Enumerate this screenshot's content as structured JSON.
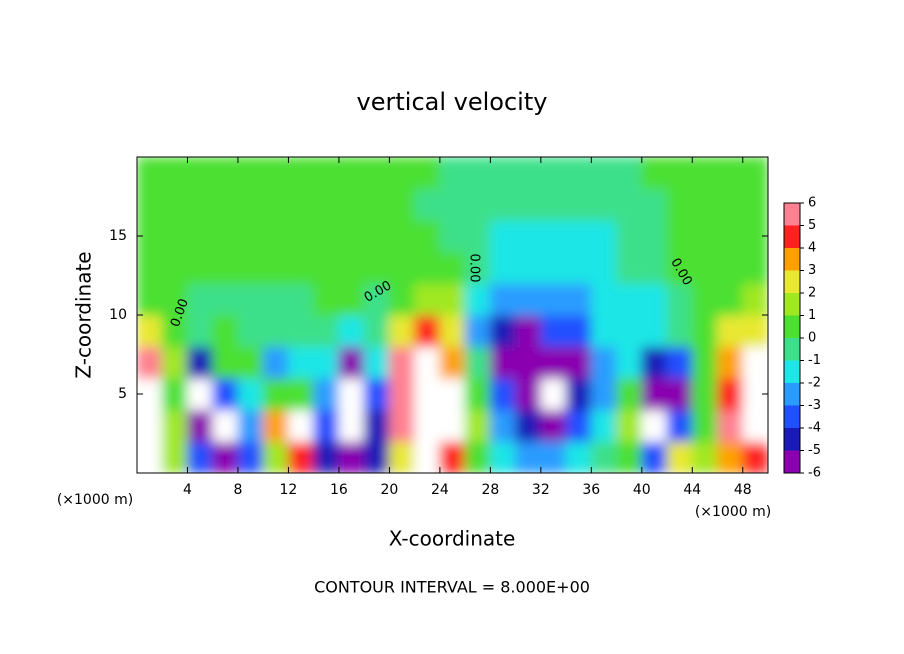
{
  "chart_data": {
    "type": "heatmap",
    "title": "vertical velocity",
    "x_label": "X-coordinate",
    "y_label": "Z-coordinate",
    "x_unit_label": "(×1000 m)",
    "y_unit_label": "(×1000 m)",
    "footer": "CONTOUR INTERVAL = 8.000E+00",
    "contour_labels": [
      "0.00",
      "0.00",
      "0.00",
      "0.00"
    ],
    "x": [
      1,
      3,
      5,
      7,
      9,
      11,
      13,
      15,
      17,
      19,
      21,
      23,
      25,
      27,
      29,
      31,
      33,
      35,
      37,
      39,
      41,
      43,
      45,
      47,
      49
    ],
    "y": [
      1,
      3,
      5,
      7,
      9,
      11,
      13,
      15,
      17,
      19
    ],
    "z": [
      [
        7,
        2,
        -3,
        -5,
        -3,
        2,
        5,
        -4,
        -6,
        -4,
        3,
        7,
        5,
        1,
        -1,
        -2,
        -2,
        -1,
        0,
        1,
        -3,
        3,
        2,
        4,
        5
      ],
      [
        8,
        2,
        -5,
        -8,
        -2,
        4,
        7,
        -3,
        -8,
        -4,
        6,
        8,
        7,
        2,
        -2,
        -4,
        -5,
        -3,
        -1,
        2,
        -7,
        -3,
        1,
        6,
        8
      ],
      [
        8,
        1,
        -7,
        -3,
        -1,
        1,
        1,
        -2,
        -8,
        -3,
        6,
        8,
        7,
        1,
        -3,
        -6,
        -8,
        -4,
        -2,
        1,
        -6,
        -5,
        0.5,
        5,
        8
      ],
      [
        6,
        2,
        -4,
        1,
        0.5,
        -2,
        -1,
        -1,
        -5,
        -1,
        6,
        8,
        4,
        0,
        -5,
        -6,
        -5,
        -6,
        -2,
        -1,
        -4,
        -3,
        0.5,
        4,
        7
      ],
      [
        3,
        1,
        0,
        0.5,
        0,
        0,
        0,
        0,
        -1,
        0,
        3,
        5,
        3,
        -2,
        -4,
        -5,
        -3,
        -3,
        -1.5,
        -1,
        -1,
        0,
        1,
        3,
        3
      ],
      [
        1,
        0.5,
        0,
        0,
        0,
        0,
        0,
        0.5,
        0.5,
        0,
        1,
        2,
        2,
        -1,
        -2,
        -2,
        -2,
        -2,
        -1,
        -1,
        -1,
        0,
        0.5,
        1,
        1.5
      ],
      [
        0.5,
        0.5,
        0.5,
        0.5,
        0.5,
        0.5,
        0.5,
        0.5,
        0.5,
        0.5,
        0.5,
        0.5,
        0.5,
        -0.5,
        -1,
        -1,
        -1.5,
        -1.5,
        -1,
        -0.5,
        0,
        0.5,
        0.5,
        0.5,
        0.5
      ],
      [
        0.5,
        0.5,
        0.5,
        0.5,
        0.5,
        0.5,
        0.5,
        0.5,
        0.5,
        0.5,
        0.5,
        0.5,
        0,
        -0.5,
        -1,
        -1,
        -1,
        -1,
        -1,
        -0.5,
        0,
        0.5,
        0.5,
        0.5,
        0.5
      ],
      [
        0.5,
        0.5,
        0.5,
        0.5,
        0.5,
        0.5,
        0.5,
        0.5,
        0.5,
        0.5,
        0.5,
        0,
        0,
        -0.5,
        -0.5,
        -0.5,
        -0.5,
        -0.5,
        -0.5,
        0,
        0,
        0.5,
        0.5,
        0.5,
        0.5
      ],
      [
        0.5,
        0.5,
        0.5,
        0.5,
        0.5,
        0.5,
        0.5,
        0.5,
        0.5,
        0.5,
        0.5,
        0.5,
        0,
        0,
        0,
        -0.5,
        -0.5,
        -0.5,
        0,
        0,
        0.5,
        0.5,
        0.5,
        0.5,
        0.5
      ]
    ],
    "xlim": [
      0,
      50
    ],
    "ylim": [
      0,
      20
    ],
    "xticks": [
      4,
      8,
      12,
      16,
      20,
      24,
      28,
      32,
      36,
      40,
      44,
      48
    ],
    "yticks": [
      5,
      10,
      15
    ],
    "color_levels": [
      -6,
      -5,
      -4,
      -3,
      -2,
      -1,
      0,
      1,
      2,
      3,
      4,
      5,
      6
    ],
    "colors": [
      "#8a00b0",
      "#1a1ab8",
      "#2050ff",
      "#2a9cff",
      "#1ee6e6",
      "#3ce08a",
      "#4ce030",
      "#a0e820",
      "#e8e830",
      "#ffa000",
      "#ff2020",
      "#ff8090"
    ],
    "over_color": "#ffffff",
    "under_color": "#ffffff"
  }
}
